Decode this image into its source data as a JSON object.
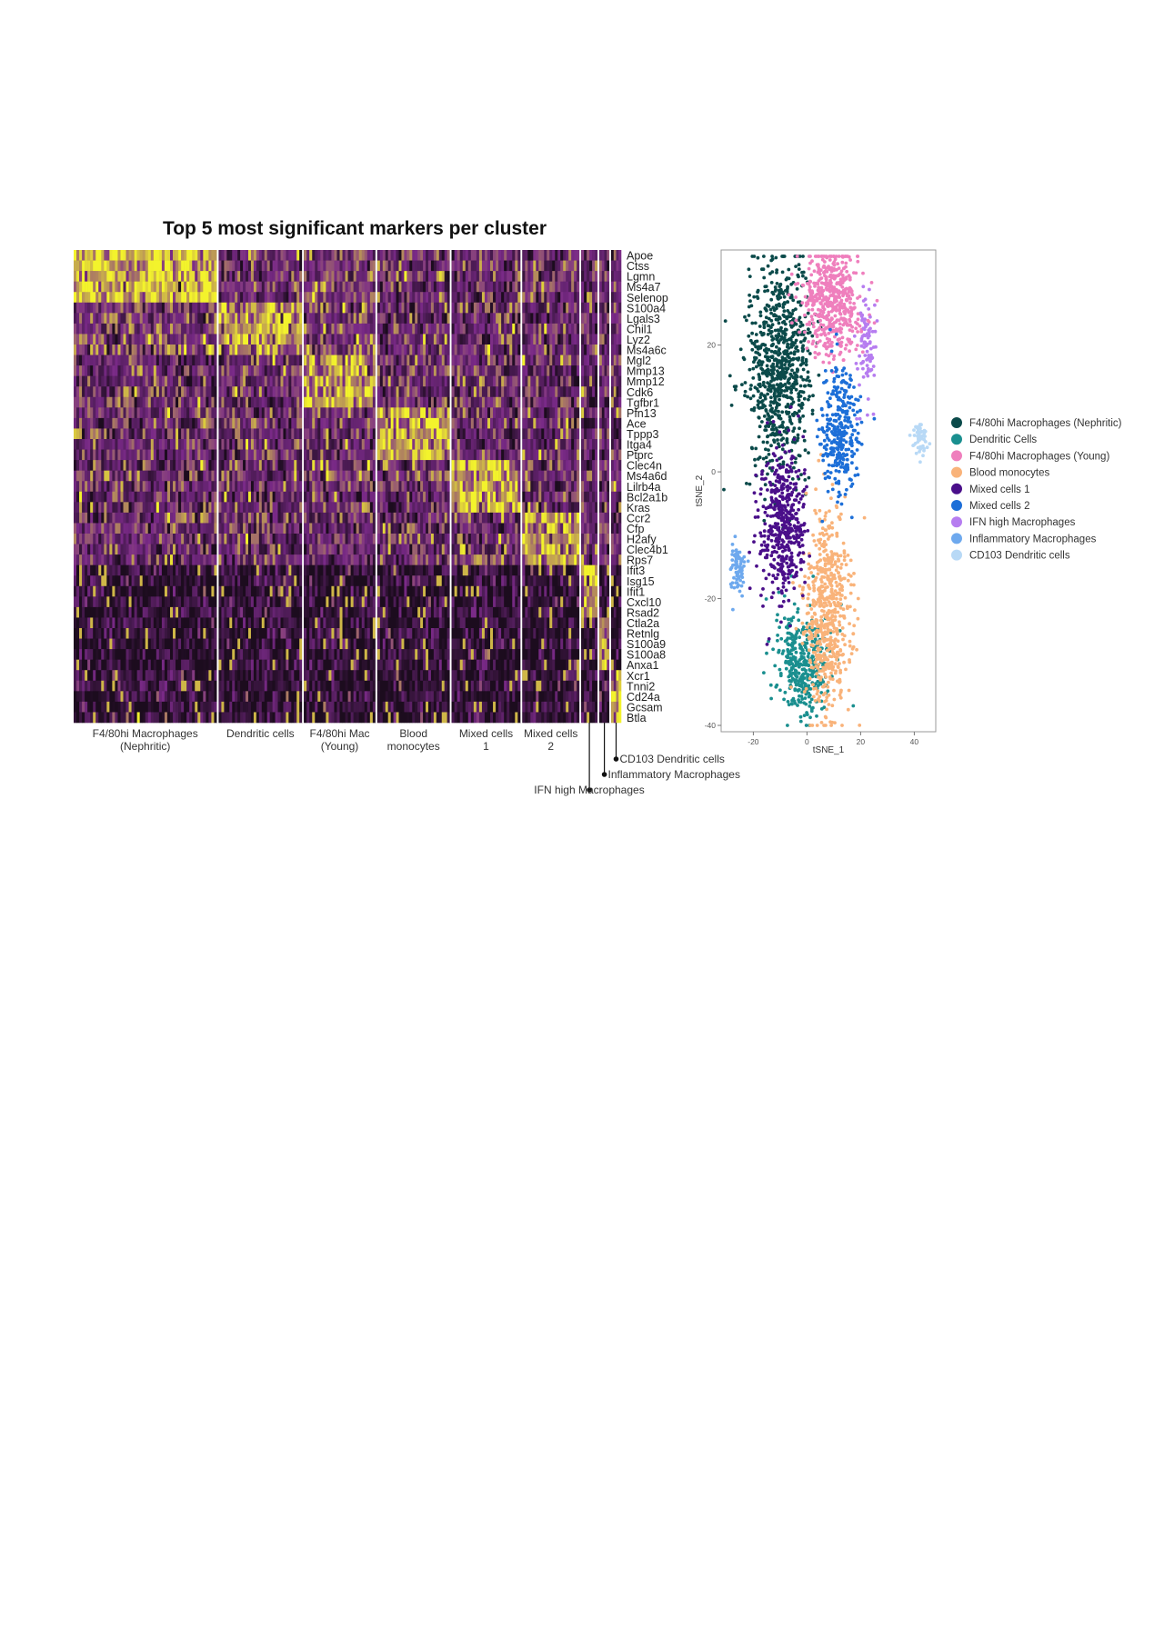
{
  "chart_data": [
    {
      "type": "heatmap",
      "title": "Top 5 most significant markers per cluster",
      "genes": [
        "Apoe",
        "Ctss",
        "Lgmn",
        "Ms4a7",
        "Selenop",
        "S100a4",
        "Lgals3",
        "Chil1",
        "Lyz2",
        "Ms4a6c",
        "Mgl2",
        "Mmp13",
        "Mmp12",
        "Cdk6",
        "Tgfbr1",
        "Pfn13",
        "Ace",
        "Tppp3",
        "Itga4",
        "Ptprc",
        "Clec4n",
        "Ms4a6d",
        "Lilrb4a",
        "Bcl2a1b",
        "Kras",
        "Ccr2",
        "Cfp",
        "H2afy",
        "Clec4b1",
        "Rps7",
        "Ifit3",
        "Isg15",
        "Ifit1",
        "Cxcl10",
        "Rsad2",
        "Ctla2a",
        "Retnlg",
        "S100a9",
        "S100a8",
        "Anxa1",
        "Xcr1",
        "Tnni2",
        "Cd24a",
        "Gcsam",
        "Btla"
      ],
      "clusters": [
        {
          "label_lines": [
            "F4/80hi Macrophages",
            "(Nephritic)"
          ],
          "marker_block": 0
        },
        {
          "label_lines": [
            "Dendritic cells"
          ],
          "marker_block": 1
        },
        {
          "label_lines": [
            "F4/80hi Mac",
            "(Young)"
          ],
          "marker_block": 2
        },
        {
          "label_lines": [
            "Blood",
            "monocytes"
          ],
          "marker_block": 3
        },
        {
          "label_lines": [
            "Mixed cells",
            "1"
          ],
          "marker_block": 4
        },
        {
          "label_lines": [
            "Mixed cells",
            "2"
          ],
          "marker_block": 5
        },
        {
          "label_lines": [
            "IFN high Macrophages"
          ],
          "marker_block": 6
        },
        {
          "label_lines": [
            "Inflammatory Macrophages"
          ],
          "marker_block": 7
        },
        {
          "label_lines": [
            "CD103 Dendritic cells"
          ],
          "marker_block": 8
        }
      ],
      "colors": {
        "low": "#1c0c1e",
        "mid": "#7a2a88",
        "high": "#f3f32c",
        "separator": "#ffffff"
      }
    },
    {
      "type": "scatter",
      "xlabel": "tSNE_1",
      "ylabel": "tSNE_2",
      "xlim": [
        -32,
        48
      ],
      "ylim": [
        -41,
        35
      ],
      "x_ticks": [
        -20,
        0,
        20,
        40
      ],
      "y_ticks": [
        -40,
        -20,
        0,
        20
      ],
      "legend_position": "right",
      "series": [
        {
          "name": "F4/80hi Macrophages (Nephritic)",
          "color": "#0b4a4a",
          "n": 800,
          "center": [
            -10,
            16
          ],
          "spread": [
            7,
            10
          ]
        },
        {
          "name": "Dendritic Cells",
          "color": "#1a8f8f",
          "n": 380,
          "center": [
            -2,
            -30
          ],
          "spread": [
            6,
            5
          ]
        },
        {
          "name": "F4/80hi Macrophages (Young)",
          "color": "#ef7fbd",
          "n": 520,
          "center": [
            9,
            27
          ],
          "spread": [
            6,
            5
          ]
        },
        {
          "name": "Blood monocytes",
          "color": "#f9b37a",
          "n": 600,
          "center": [
            8,
            -22
          ],
          "spread": [
            5,
            9
          ]
        },
        {
          "name": "Mixed cells 1",
          "color": "#4a0f8a",
          "n": 480,
          "center": [
            -9,
            -8
          ],
          "spread": [
            5,
            7
          ]
        },
        {
          "name": "Mixed cells 2",
          "color": "#1d6fd8",
          "n": 320,
          "center": [
            12,
            6
          ],
          "spread": [
            4,
            6
          ]
        },
        {
          "name": "IFN high Macrophages",
          "color": "#b67df0",
          "n": 90,
          "center": [
            22,
            20
          ],
          "spread": [
            2,
            5
          ]
        },
        {
          "name": "Inflammatory Macrophages",
          "color": "#6ea9ee",
          "n": 70,
          "center": [
            -26,
            -15
          ],
          "spread": [
            1.5,
            2.5
          ]
        },
        {
          "name": "CD103 Dendritic cells",
          "color": "#b8d9f6",
          "n": 55,
          "center": [
            42,
            6
          ],
          "spread": [
            1.5,
            1.8
          ]
        }
      ]
    }
  ]
}
